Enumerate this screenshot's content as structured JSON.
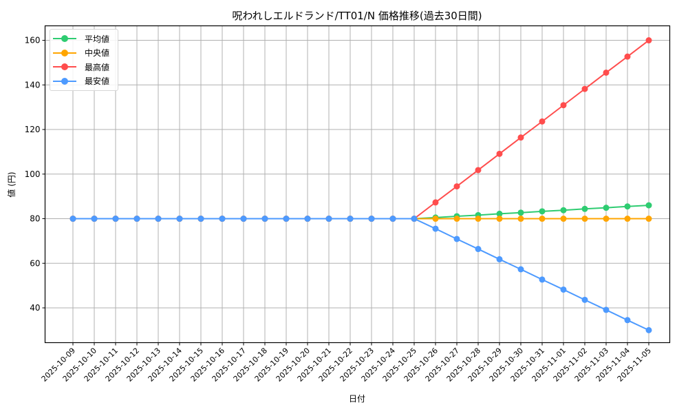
{
  "chart_data": {
    "type": "line",
    "title": "呪われしエルドランド/TT01/N 価格推移(過去30日間)",
    "xlabel": "日付",
    "ylabel": "値 (円)",
    "ylim": [
      24.4,
      166.5
    ],
    "yticks": [
      40,
      60,
      80,
      100,
      120,
      140,
      160
    ],
    "grid": true,
    "legend_position": "upper left",
    "x": [
      "2025-10-09",
      "2025-10-10",
      "2025-10-11",
      "2025-10-12",
      "2025-10-13",
      "2025-10-14",
      "2025-10-15",
      "2025-10-16",
      "2025-10-17",
      "2025-10-18",
      "2025-10-19",
      "2025-10-20",
      "2025-10-21",
      "2025-10-22",
      "2025-10-23",
      "2025-10-24",
      "2025-10-25",
      "2025-10-26",
      "2025-10-27",
      "2025-10-28",
      "2025-10-29",
      "2025-10-30",
      "2025-10-31",
      "2025-11-01",
      "2025-11-02",
      "2025-11-03",
      "2025-11-04",
      "2025-11-05"
    ],
    "series": [
      {
        "name": "平均値",
        "color": "#2ecc71",
        "values": [
          80,
          80,
          80,
          80,
          80,
          80,
          80,
          80,
          80,
          80,
          80,
          80,
          80,
          80,
          80,
          80,
          80,
          80.5,
          81.1,
          81.6,
          82.2,
          82.7,
          83.3,
          83.8,
          84.4,
          84.9,
          85.5,
          86.0
        ]
      },
      {
        "name": "中央値",
        "color": "#ffa500",
        "values": [
          80,
          80,
          80,
          80,
          80,
          80,
          80,
          80,
          80,
          80,
          80,
          80,
          80,
          80,
          80,
          80,
          80,
          80,
          80,
          80,
          80,
          80,
          80,
          80,
          80,
          80,
          80,
          80
        ]
      },
      {
        "name": "最高値",
        "color": "#ff4d4d",
        "values": [
          80,
          80,
          80,
          80,
          80,
          80,
          80,
          80,
          80,
          80,
          80,
          80,
          80,
          80,
          80,
          80,
          80,
          87.3,
          94.5,
          101.8,
          109.1,
          116.4,
          123.6,
          130.9,
          138.2,
          145.5,
          152.7,
          160.0
        ]
      },
      {
        "name": "最安値",
        "color": "#4d9aff",
        "values": [
          80,
          80,
          80,
          80,
          80,
          80,
          80,
          80,
          80,
          80,
          80,
          80,
          80,
          80,
          80,
          80,
          80,
          75.5,
          70.9,
          66.4,
          61.8,
          57.3,
          52.7,
          48.2,
          43.6,
          39.1,
          34.5,
          30.0
        ]
      }
    ]
  }
}
